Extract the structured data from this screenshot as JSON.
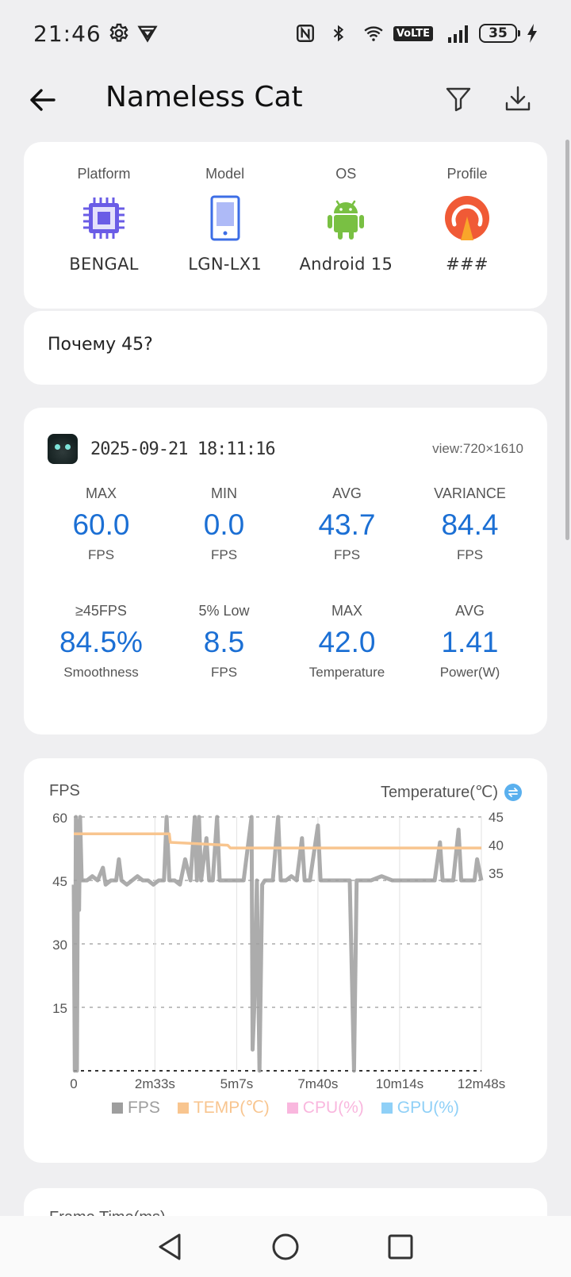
{
  "status_bar": {
    "time": "21:46",
    "network_label": "VoLTE",
    "battery": "35"
  },
  "app_bar": {
    "title": "Nameless Cat"
  },
  "device": {
    "columns": [
      {
        "label": "Platform",
        "value": "BENGAL",
        "icon": "cpu-chip-icon"
      },
      {
        "label": "Model",
        "value": "LGN-LX1",
        "icon": "phone-icon"
      },
      {
        "label": "OS",
        "value": "Android 15",
        "icon": "android-icon"
      },
      {
        "label": "Profile",
        "value": "###",
        "icon": "profile-gauge-icon"
      }
    ]
  },
  "note": {
    "text": "Почему 45?"
  },
  "session": {
    "datetime": "2025-09-21 18:11:16",
    "view": "view:720×1610",
    "stats": [
      {
        "label": "MAX",
        "value": "60.0",
        "unit": "FPS"
      },
      {
        "label": "MIN",
        "value": "0.0",
        "unit": "FPS"
      },
      {
        "label": "AVG",
        "value": "43.7",
        "unit": "FPS"
      },
      {
        "label": "VARIANCE",
        "value": "84.4",
        "unit": "FPS"
      },
      {
        "label": "≥45FPS",
        "value": "84.5%",
        "unit": "Smoothness"
      },
      {
        "label": "5% Low",
        "value": "8.5",
        "unit": "FPS"
      },
      {
        "label": "MAX",
        "value": "42.0",
        "unit": "Temperature"
      },
      {
        "label": "AVG",
        "value": "1.41",
        "unit": "Power(W)"
      }
    ]
  },
  "chart": {
    "left_title": "FPS",
    "right_title": "Temperature(℃)",
    "legend": [
      {
        "label": "FPS",
        "color": "#9e9e9e"
      },
      {
        "label": "TEMP(℃)",
        "color": "#f8c58f"
      },
      {
        "label": "CPU(%)",
        "color": "#f9b7de"
      },
      {
        "label": "GPU(%)",
        "color": "#8fd0f7"
      }
    ]
  },
  "chart_data": {
    "type": "line",
    "x_ticks": [
      "0",
      "2m33s",
      "5m7s",
      "7m40s",
      "10m14s",
      "12m48s"
    ],
    "x_tick_seconds": [
      0,
      153,
      307,
      460,
      614,
      768
    ],
    "x_range_seconds": [
      0,
      768
    ],
    "y_left_ticks": [
      15,
      30,
      45,
      60
    ],
    "y_left_range": [
      0,
      60
    ],
    "y_right_ticks": [
      35,
      40,
      45
    ],
    "y_right_range": [
      0,
      45
    ],
    "grid": true,
    "series": [
      {
        "name": "FPS",
        "color": "#9e9e9e",
        "points": [
          [
            0,
            44
          ],
          [
            2,
            0
          ],
          [
            4,
            60
          ],
          [
            6,
            0
          ],
          [
            8,
            59
          ],
          [
            10,
            38
          ],
          [
            12,
            60
          ],
          [
            15,
            45
          ],
          [
            25,
            45
          ],
          [
            35,
            46
          ],
          [
            45,
            45
          ],
          [
            55,
            48
          ],
          [
            60,
            44
          ],
          [
            70,
            45
          ],
          [
            80,
            45
          ],
          [
            85,
            50
          ],
          [
            90,
            45
          ],
          [
            100,
            44
          ],
          [
            110,
            45
          ],
          [
            120,
            46
          ],
          [
            130,
            45
          ],
          [
            140,
            45
          ],
          [
            150,
            44
          ],
          [
            160,
            45
          ],
          [
            170,
            45
          ],
          [
            175,
            60
          ],
          [
            180,
            45
          ],
          [
            190,
            45
          ],
          [
            200,
            44
          ],
          [
            210,
            50
          ],
          [
            220,
            45
          ],
          [
            228,
            60
          ],
          [
            232,
            45
          ],
          [
            236,
            60
          ],
          [
            240,
            45
          ],
          [
            250,
            55
          ],
          [
            255,
            45
          ],
          [
            262,
            45
          ],
          [
            270,
            60
          ],
          [
            275,
            45
          ],
          [
            285,
            45
          ],
          [
            300,
            45
          ],
          [
            320,
            45
          ],
          [
            335,
            60
          ],
          [
            337,
            5
          ],
          [
            340,
            15
          ],
          [
            345,
            45
          ],
          [
            350,
            0
          ],
          [
            355,
            44
          ],
          [
            360,
            45
          ],
          [
            375,
            45
          ],
          [
            385,
            60
          ],
          [
            390,
            45
          ],
          [
            400,
            45
          ],
          [
            410,
            46
          ],
          [
            420,
            45
          ],
          [
            430,
            55
          ],
          [
            435,
            45
          ],
          [
            445,
            45
          ],
          [
            460,
            58
          ],
          [
            465,
            45
          ],
          [
            480,
            45
          ],
          [
            500,
            45
          ],
          [
            520,
            45
          ],
          [
            528,
            0
          ],
          [
            533,
            45
          ],
          [
            545,
            45
          ],
          [
            560,
            45
          ],
          [
            580,
            46
          ],
          [
            600,
            45
          ],
          [
            620,
            45
          ],
          [
            640,
            45
          ],
          [
            660,
            45
          ],
          [
            680,
            45
          ],
          [
            690,
            54
          ],
          [
            695,
            45
          ],
          [
            705,
            45
          ],
          [
            715,
            45
          ],
          [
            725,
            57
          ],
          [
            730,
            45
          ],
          [
            740,
            45
          ],
          [
            755,
            45
          ],
          [
            760,
            50
          ],
          [
            768,
            45
          ]
        ]
      },
      {
        "name": "TEMP(℃)",
        "color": "#f8c58f",
        "points": [
          [
            0,
            42
          ],
          [
            180,
            42
          ],
          [
            182,
            40.5
          ],
          [
            290,
            40
          ],
          [
            295,
            39.5
          ],
          [
            768,
            39.5
          ]
        ]
      }
    ]
  },
  "frame_time": {
    "title": "Frame Time(ms)"
  }
}
